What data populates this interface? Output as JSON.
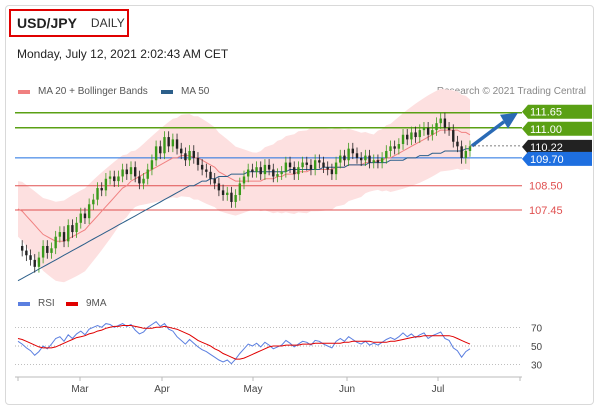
{
  "header": {
    "symbol": "USD/JPY",
    "period": "DAILY",
    "datetime": "Monday, July 12, 2021 2:02:43 AM CET",
    "copyright": "Research © 2021 Trading Central"
  },
  "legend": [
    {
      "label": "MA 20 + Bollinger Bands",
      "color": "#f08080"
    },
    {
      "label": "MA 50",
      "color": "#2c5f8a"
    }
  ],
  "rsi_legend": [
    {
      "label": "RSI",
      "color": "#5b7fe0"
    },
    {
      "label": "9MA",
      "color": "#e00000"
    }
  ],
  "chart_data": [
    {
      "type": "candlestick",
      "title": "USD/JPY",
      "x_labels": [
        "Mar",
        "Apr",
        "May",
        "Jun",
        "Jul"
      ],
      "ylim": [
        104.0,
        112.2
      ],
      "levels": [
        {
          "value": 111.65,
          "label": "111.65",
          "color": "#5aa014",
          "kind": "resistance"
        },
        {
          "value": 111.0,
          "label": "111.00",
          "color": "#5aa014",
          "kind": "resistance"
        },
        {
          "value": 110.22,
          "label": "110.22",
          "color": "#222222",
          "kind": "last"
        },
        {
          "value": 109.7,
          "label": "109.70",
          "color": "#1e6fe0",
          "kind": "pivot"
        },
        {
          "value": 108.5,
          "label": "108.50",
          "color": "#e05050",
          "kind": "support"
        },
        {
          "value": 107.45,
          "label": "107.45",
          "color": "#e05050",
          "kind": "support"
        }
      ],
      "close_path": [
        105.9,
        105.7,
        105.5,
        105.3,
        105.0,
        105.4,
        105.9,
        105.6,
        105.8,
        106.3,
        106.5,
        106.1,
        106.8,
        106.5,
        106.9,
        107.3,
        107.1,
        107.7,
        107.9,
        108.4,
        108.3,
        108.8,
        108.9,
        108.7,
        108.9,
        109.2,
        109.0,
        109.3,
        108.9,
        108.6,
        108.8,
        109.2,
        109.6,
        110.2,
        109.9,
        110.6,
        110.2,
        110.5,
        110.1,
        109.9,
        109.6,
        110.0,
        109.7,
        109.4,
        109.2,
        109.1,
        108.8,
        108.6,
        108.3,
        108.1,
        108.2,
        107.8,
        108.1,
        108.6,
        108.9,
        109.2,
        109.1,
        109.3,
        109.0,
        109.4,
        109.2,
        108.9,
        109.0,
        109.1,
        109.5,
        109.3,
        109.0,
        109.3,
        109.5,
        109.4,
        109.2,
        109.6,
        109.5,
        109.3,
        109.2,
        109.0,
        109.5,
        109.8,
        109.6,
        110.1,
        109.9,
        109.7,
        109.6,
        109.8,
        109.5,
        109.6,
        109.5,
        109.7,
        110.0,
        110.2,
        110.1,
        110.3,
        110.7,
        110.5,
        110.8,
        110.6,
        110.9,
        111.0,
        110.7,
        110.9,
        111.2,
        111.4,
        111.0,
        110.9,
        110.4,
        110.2,
        109.7,
        110.0,
        110.2
      ],
      "ma20": [
        107.5,
        107.4,
        107.2,
        107.0,
        106.8,
        106.6,
        106.4,
        106.3,
        106.2,
        106.1,
        106.1,
        106.1,
        106.2,
        106.3,
        106.4,
        106.5,
        106.6,
        106.8,
        107.0,
        107.2,
        107.4,
        107.6,
        107.8,
        108.0,
        108.2,
        108.4,
        108.5,
        108.7,
        108.8,
        108.9,
        109.0,
        109.1,
        109.2,
        109.3,
        109.4,
        109.5,
        109.6,
        109.7,
        109.7,
        109.8,
        109.8,
        109.8,
        109.7,
        109.7,
        109.6,
        109.5,
        109.4,
        109.3,
        109.1,
        109.0,
        108.9,
        108.8,
        108.7,
        108.7,
        108.7,
        108.7,
        108.7,
        108.7,
        108.7,
        108.8,
        108.8,
        108.8,
        108.9,
        108.9,
        109.0,
        109.0,
        109.0,
        109.1,
        109.1,
        109.1,
        109.2,
        109.2,
        109.2,
        109.2,
        109.2,
        109.2,
        109.3,
        109.3,
        109.3,
        109.4,
        109.4,
        109.4,
        109.4,
        109.5,
        109.5,
        109.5,
        109.6,
        109.6,
        109.7,
        109.7,
        109.8,
        109.9,
        110.0,
        110.1,
        110.2,
        110.3,
        110.4,
        110.5,
        110.6,
        110.7,
        110.8,
        110.9,
        110.9,
        110.9,
        110.9,
        110.9,
        110.8,
        110.8,
        110.7
      ],
      "ma50": [
        104.4,
        104.5,
        104.6,
        104.7,
        104.8,
        104.9,
        105.0,
        105.1,
        105.2,
        105.3,
        105.4,
        105.5,
        105.6,
        105.7,
        105.8,
        105.9,
        106.0,
        106.1,
        106.2,
        106.3,
        106.4,
        106.5,
        106.6,
        106.7,
        106.8,
        106.9,
        107.0,
        107.1,
        107.2,
        107.3,
        107.4,
        107.5,
        107.6,
        107.7,
        107.8,
        107.9,
        108.0,
        108.1,
        108.2,
        108.3,
        108.4,
        108.5,
        108.5,
        108.6,
        108.7,
        108.7,
        108.8,
        108.8,
        108.9,
        108.9,
        108.9,
        109.0,
        109.0,
        109.0,
        109.0,
        109.1,
        109.1,
        109.1,
        109.1,
        109.1,
        109.1,
        109.1,
        109.1,
        109.1,
        109.1,
        109.2,
        109.2,
        109.2,
        109.2,
        109.2,
        109.2,
        109.2,
        109.2,
        109.3,
        109.3,
        109.3,
        109.3,
        109.3,
        109.3,
        109.4,
        109.4,
        109.4,
        109.4,
        109.4,
        109.5,
        109.5,
        109.5,
        109.5,
        109.5,
        109.6,
        109.6,
        109.6,
        109.6,
        109.7,
        109.7,
        109.7,
        109.8,
        109.8,
        109.8,
        109.9,
        109.9,
        109.9,
        110.0,
        110.0,
        110.0,
        110.0,
        110.0,
        110.1,
        110.1
      ],
      "forecast": {
        "from": 110.22,
        "to": 111.65
      }
    },
    {
      "type": "line",
      "title": "RSI",
      "ylim": [
        20,
        80
      ],
      "y_ticks": [
        70,
        50,
        30
      ],
      "series": [
        {
          "name": "RSI",
          "color": "#5b7fe0",
          "values": [
            55,
            52,
            48,
            45,
            40,
            44,
            50,
            47,
            52,
            58,
            60,
            55,
            62,
            58,
            63,
            66,
            62,
            68,
            70,
            72,
            70,
            74,
            73,
            70,
            72,
            74,
            71,
            73,
            67,
            63,
            65,
            70,
            73,
            76,
            71,
            74,
            68,
            66,
            60,
            56,
            52,
            57,
            53,
            49,
            46,
            44,
            41,
            38,
            35,
            33,
            35,
            31,
            36,
            42,
            47,
            52,
            50,
            53,
            49,
            54,
            51,
            47,
            49,
            51,
            56,
            53,
            49,
            52,
            55,
            54,
            51,
            56,
            55,
            52,
            50,
            48,
            55,
            58,
            55,
            60,
            57,
            54,
            52,
            55,
            51,
            53,
            51,
            54,
            57,
            59,
            57,
            60,
            64,
            60,
            63,
            59,
            62,
            64,
            58,
            61,
            63,
            65,
            58,
            56,
            48,
            45,
            38,
            44,
            47
          ]
        },
        {
          "name": "9MA",
          "color": "#e00000",
          "values": [
            58,
            57,
            55,
            53,
            51,
            49,
            48,
            48,
            48,
            49,
            51,
            53,
            55,
            57,
            59,
            60,
            61,
            63,
            64,
            66,
            67,
            69,
            70,
            71,
            71,
            72,
            72,
            72,
            71,
            70,
            69,
            69,
            69,
            70,
            70,
            71,
            70,
            69,
            68,
            66,
            64,
            62,
            59,
            56,
            54,
            52,
            50,
            47,
            45,
            42,
            40,
            38,
            36,
            36,
            37,
            39,
            41,
            43,
            45,
            47,
            49,
            50,
            50,
            50,
            51,
            51,
            51,
            51,
            52,
            52,
            52,
            53,
            53,
            53,
            53,
            53,
            53,
            53,
            54,
            54,
            55,
            55,
            55,
            55,
            55,
            54,
            54,
            54,
            54,
            55,
            55,
            56,
            57,
            58,
            59,
            60,
            60,
            61,
            61,
            61,
            61,
            61,
            61,
            61,
            60,
            58,
            56,
            54,
            52
          ]
        }
      ]
    }
  ]
}
